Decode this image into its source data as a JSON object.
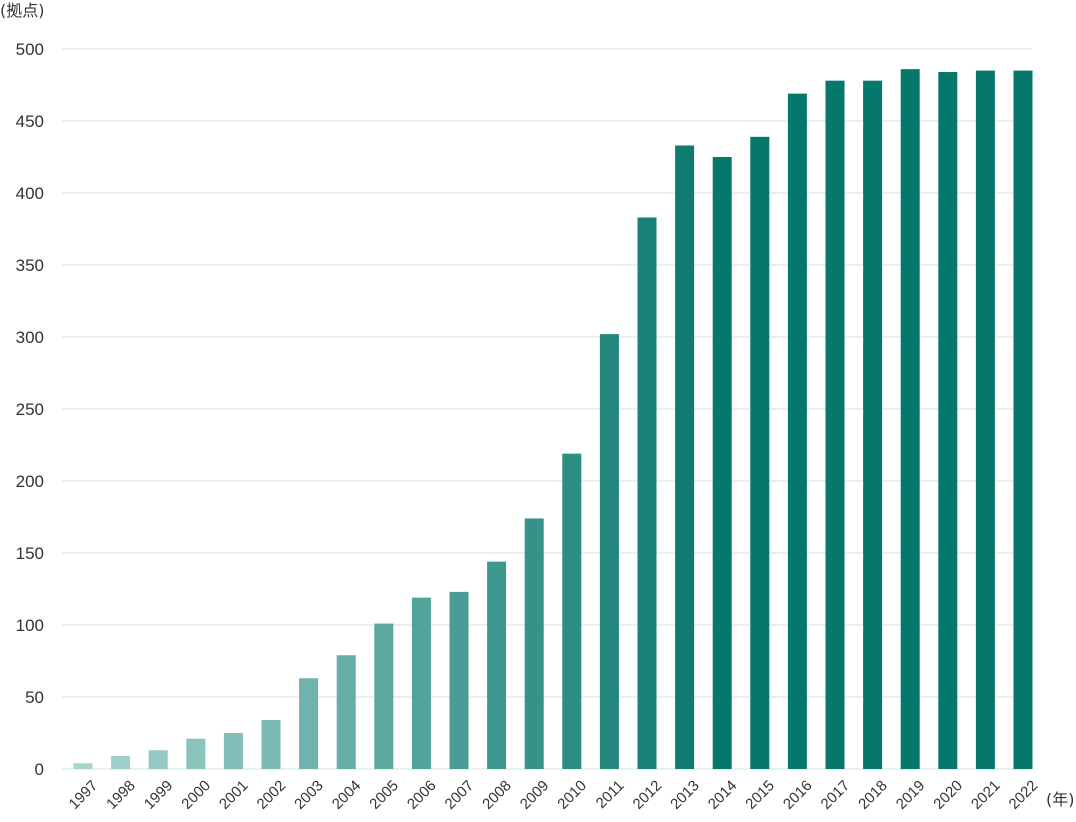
{
  "chart_data": {
    "type": "bar",
    "ylabel": "(拠点)",
    "xlabel": "(年)",
    "ylim": [
      0,
      500
    ],
    "yticks": [
      0,
      50,
      100,
      150,
      200,
      250,
      300,
      350,
      400,
      450,
      500
    ],
    "grid": true,
    "categories": [
      "1997",
      "1998",
      "1999",
      "2000",
      "2001",
      "2002",
      "2003",
      "2004",
      "2005",
      "2006",
      "2007",
      "2008",
      "2009",
      "2010",
      "2011",
      "2012",
      "2013",
      "2014",
      "2015",
      "2016",
      "2017",
      "2018",
      "2019",
      "2020",
      "2021",
      "2022"
    ],
    "values": [
      4,
      9,
      13,
      21,
      25,
      34,
      63,
      79,
      101,
      119,
      123,
      144,
      174,
      219,
      302,
      383,
      433,
      425,
      439,
      469,
      478,
      478,
      486,
      484,
      485,
      485
    ],
    "colors": {
      "bar_start": "#a8d4cf",
      "bar_end": "#06776b",
      "grid": "#cfe3e8",
      "text": "#333333"
    }
  }
}
